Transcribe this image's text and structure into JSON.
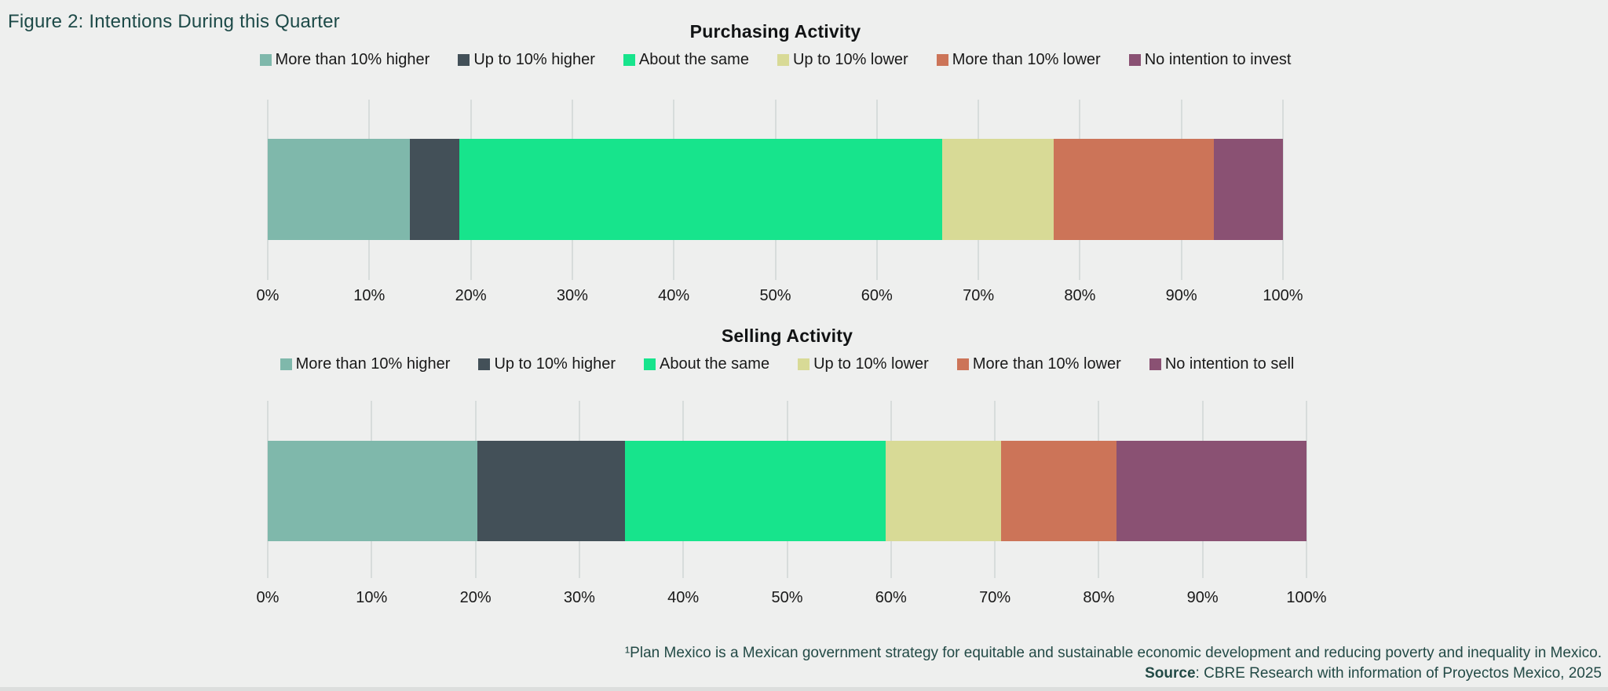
{
  "page": {
    "figure_title": "Figure 2: Intentions During this Quarter",
    "footnote": "¹Plan Mexico is a Mexican government strategy for equitable and sustainable economic development and reducing poverty and inequality in Mexico.",
    "source_label": "Source",
    "source_text": ": CBRE Research with information of Proyectos Mexico, 2025"
  },
  "colors": {
    "background": "#EEEFEE",
    "figure_title": "#1D4A48",
    "text": "#191919",
    "gridline": "#D7DCDB",
    "footnote": "#234A46"
  },
  "chart_data": [
    {
      "type": "bar",
      "orientation": "horizontal-stacked",
      "title": "Purchasing Activity",
      "categories": [
        "More than 10% higher",
        "Up to 10% higher",
        "About the same",
        "Up to 10% lower",
        "More than 10% lower",
        "No intention to invest"
      ],
      "values": [
        14,
        4.9,
        47.5,
        11,
        15.8,
        6.8
      ],
      "colors": [
        "#7FB8AB",
        "#435058",
        "#17E48C",
        "#D8DA96",
        "#CC7458",
        "#8A5173"
      ],
      "xlim": [
        0,
        100
      ],
      "tick_labels": [
        "0%",
        "10%",
        "20%",
        "30%",
        "40%",
        "50%",
        "60%",
        "70%",
        "80%",
        "90%",
        "100%"
      ],
      "grid": true,
      "legend_position": "top"
    },
    {
      "type": "bar",
      "orientation": "horizontal-stacked",
      "title": "Selling Activity",
      "categories": [
        "More than 10% higher",
        "Up to 10% higher",
        "About the same",
        "Up to 10% lower",
        "More than 10% lower",
        "No intention to sell"
      ],
      "values": [
        20.2,
        14.2,
        25.1,
        11.1,
        11.1,
        18.3
      ],
      "colors": [
        "#7FB8AB",
        "#435058",
        "#17E48C",
        "#D8DA96",
        "#CC7458",
        "#8A5173"
      ],
      "xlim": [
        0,
        100
      ],
      "tick_labels": [
        "0%",
        "10%",
        "20%",
        "30%",
        "40%",
        "50%",
        "60%",
        "70%",
        "80%",
        "90%",
        "100%"
      ],
      "grid": true,
      "legend_position": "top"
    }
  ]
}
